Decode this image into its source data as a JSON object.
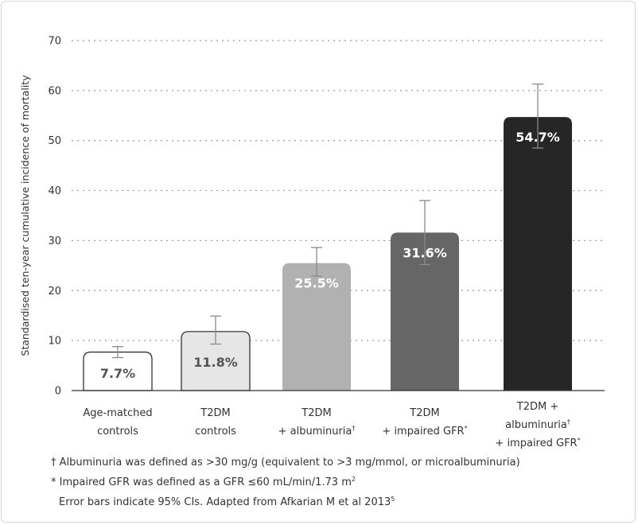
{
  "chart_data": {
    "type": "bar",
    "ylabel": "Standardised ten-year cumulative incidence of mortality",
    "ylim": [
      0,
      70
    ],
    "yticks": [
      0,
      10,
      20,
      30,
      40,
      50,
      60,
      70
    ],
    "grid": true,
    "bars": [
      {
        "label_lines": [
          "Age-matched",
          "controls"
        ],
        "sup": [],
        "value": 7.7,
        "value_label": "7.7%",
        "err_low": 6.6,
        "err_high": 8.8,
        "fill": "#ffffff",
        "text_color": "#555555"
      },
      {
        "label_lines": [
          "T2DM",
          "controls"
        ],
        "sup": [],
        "value": 11.8,
        "value_label": "11.8%",
        "err_low": 9.3,
        "err_high": 14.9,
        "fill": "#e6e6e6",
        "text_color": "#555555"
      },
      {
        "label_lines": [
          "T2DM",
          "+ albuminuria"
        ],
        "sup": [
          "",
          "†"
        ],
        "value": 25.5,
        "value_label": "25.5%",
        "err_low": 22.9,
        "err_high": 28.6,
        "fill": "#b1b1b1",
        "text_color": "#ffffff"
      },
      {
        "label_lines": [
          "T2DM",
          "+ impaired GFR"
        ],
        "sup": [
          "",
          "*"
        ],
        "value": 31.6,
        "value_label": "31.6%",
        "err_low": 25.2,
        "err_high": 38.0,
        "fill": "#666666",
        "text_color": "#ffffff"
      },
      {
        "label_lines": [
          "T2DM +",
          "albuminuria",
          "+ impaired GFR"
        ],
        "sup": [
          "",
          "†",
          "*"
        ],
        "value": 54.7,
        "value_label": "54.7%",
        "err_low": 48.5,
        "err_high": 61.3,
        "fill": "#262626",
        "text_color": "#ffffff"
      }
    ]
  },
  "footnotes": {
    "line1": "† Albuminuria was defined as >30 mg/g (equivalent to >3 mg/mmol, or microalbuminuria)",
    "line2": "* Impaired GFR was defined as a GFR ≤60 mL/min/1.73 m",
    "line2_sup": "2",
    "line3": "Error bars indicate 95% CIs. Adapted from Afkarian M et al 2013",
    "line3_sup": "5"
  }
}
